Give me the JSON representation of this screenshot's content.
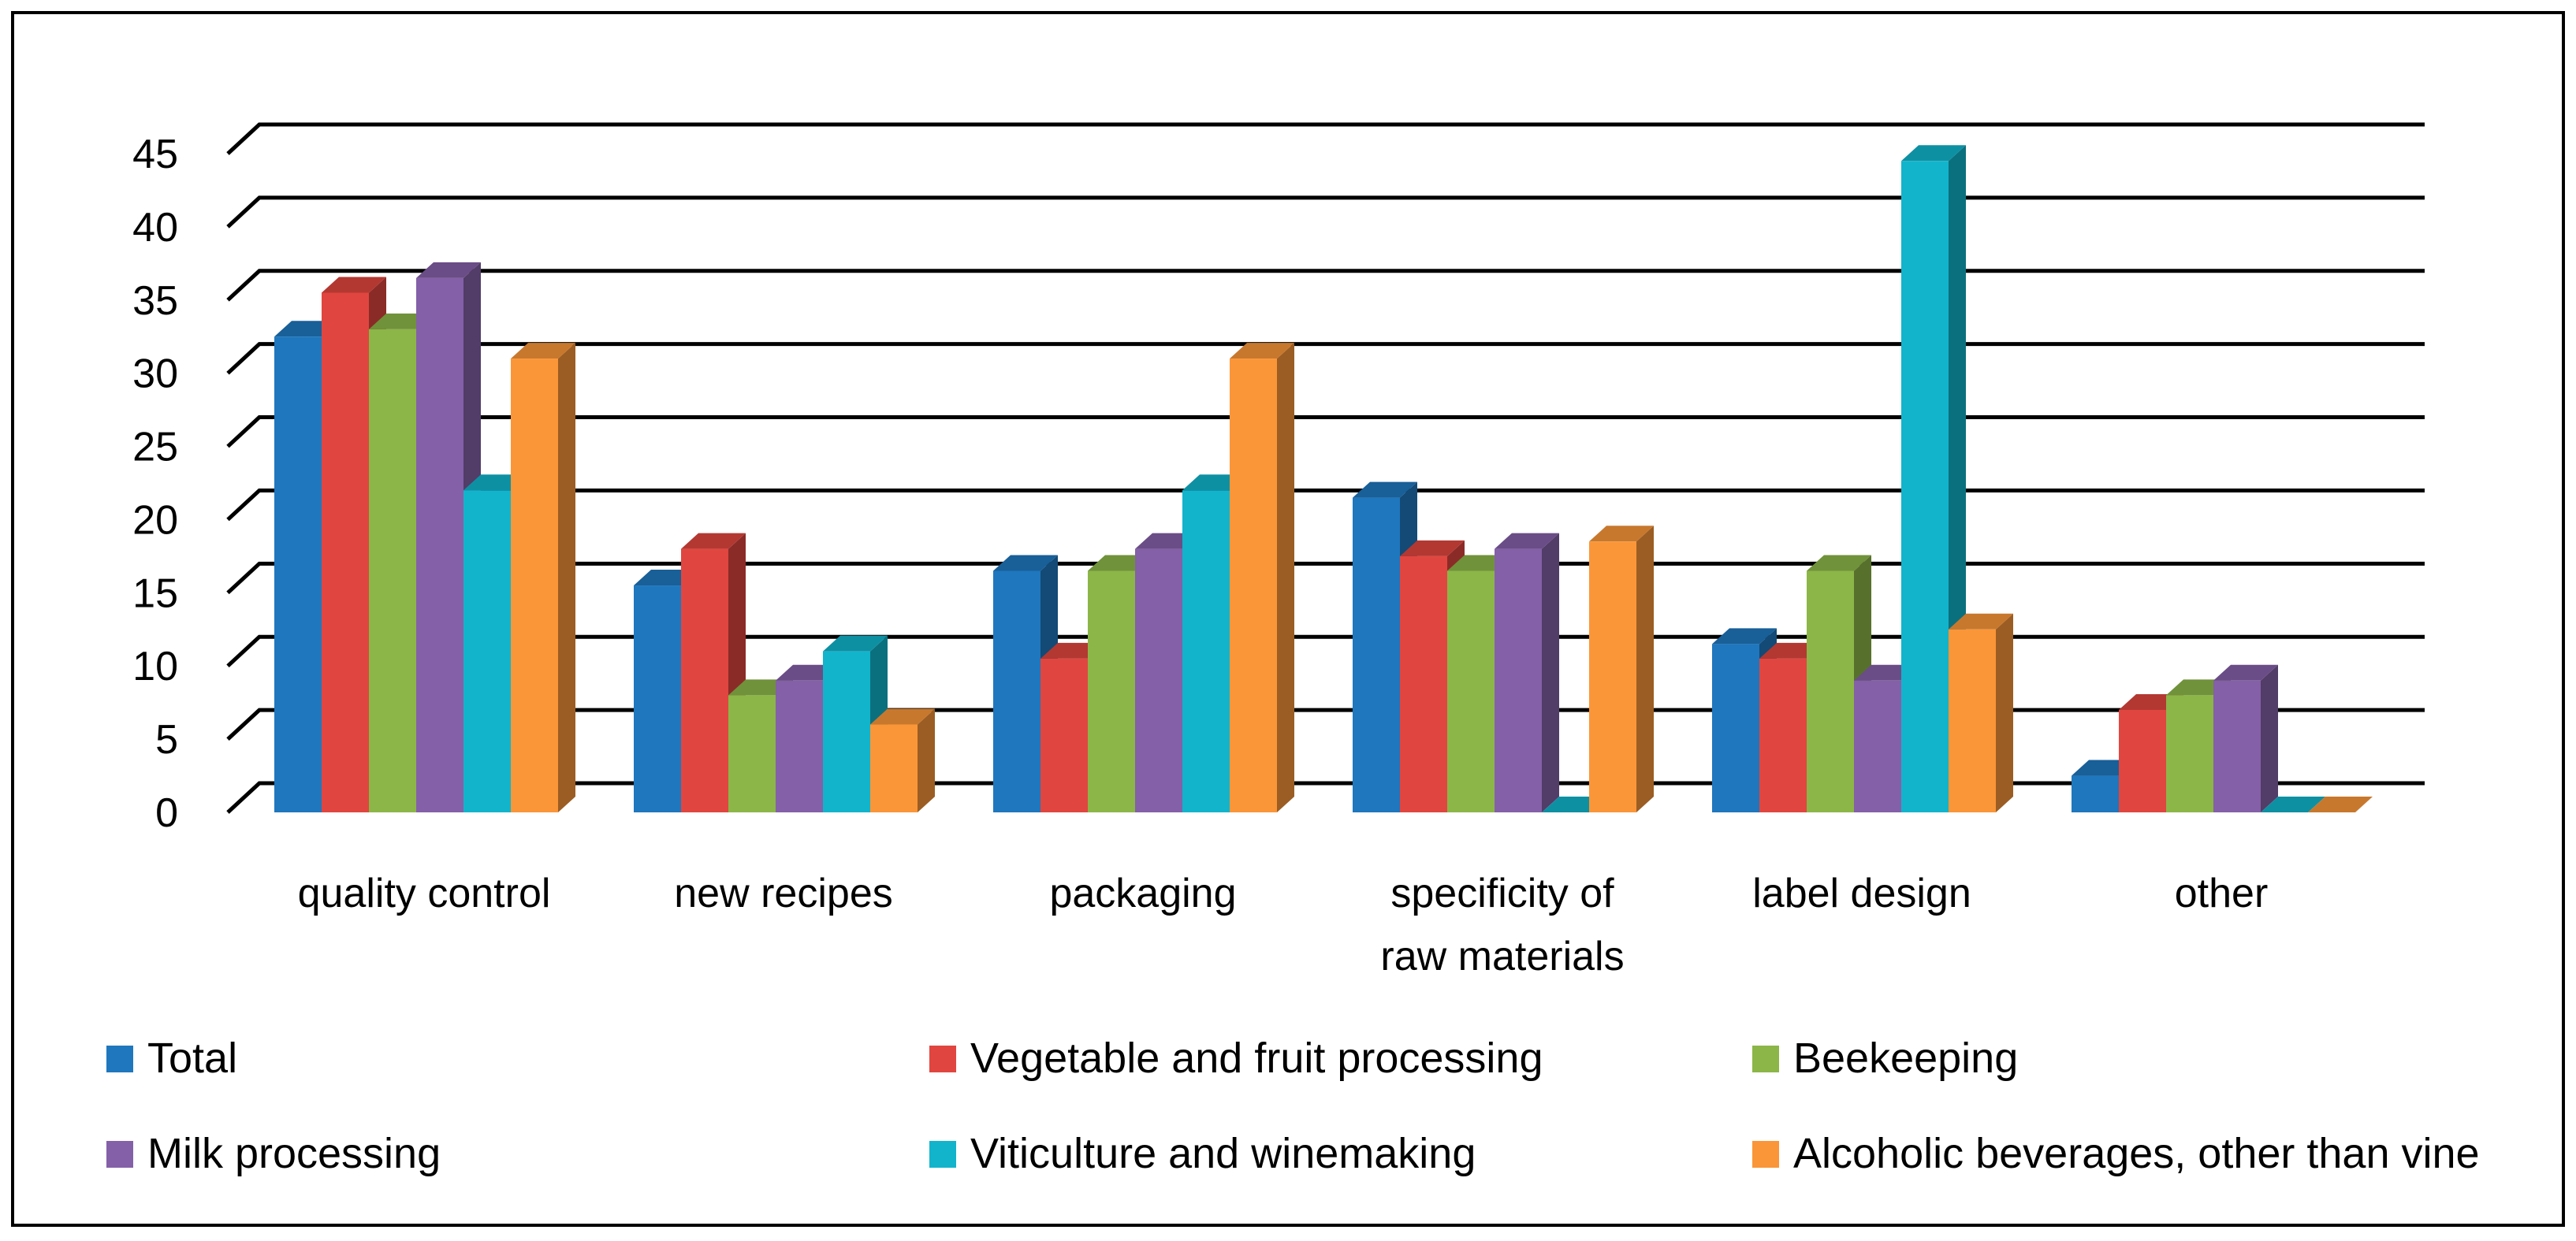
{
  "chart_data": {
    "type": "bar",
    "title": "",
    "xlabel": "",
    "ylabel": "",
    "ylim": [
      0,
      45
    ],
    "yticks": [
      "0",
      "5",
      "10",
      "15",
      "20",
      "25",
      "30",
      "35",
      "40",
      "45"
    ],
    "grid": true,
    "legend_position": "bottom",
    "categories": [
      [
        "quality control"
      ],
      [
        "new recipes"
      ],
      [
        "packaging"
      ],
      [
        "specificity of",
        "raw materials"
      ],
      [
        "label design"
      ],
      [
        "other"
      ]
    ],
    "series": [
      {
        "name": "Total",
        "color": "#1F77BE",
        "values": [
          32.5,
          15.5,
          16.5,
          21.5,
          11.5,
          2.5
        ]
      },
      {
        "name": "Vegetable and fruit processing",
        "color": "#E0463F",
        "values": [
          35.5,
          18,
          10.5,
          17.5,
          10.5,
          7
        ]
      },
      {
        "name": "Beekeeping",
        "color": "#8CB648",
        "values": [
          33,
          8,
          16.5,
          16.5,
          16.5,
          8
        ]
      },
      {
        "name": "Milk processing",
        "color": "#8460A8",
        "values": [
          36.5,
          9,
          18,
          18,
          9,
          9
        ]
      },
      {
        "name": "Viticulture and winemaking",
        "color": "#12B4CC",
        "values": [
          22,
          11,
          22,
          0,
          44.5,
          0
        ]
      },
      {
        "name": "Alcoholic beverages, other than vine",
        "color": "#FA9638",
        "values": [
          31,
          6,
          31,
          18.5,
          12.5,
          0
        ]
      }
    ]
  }
}
